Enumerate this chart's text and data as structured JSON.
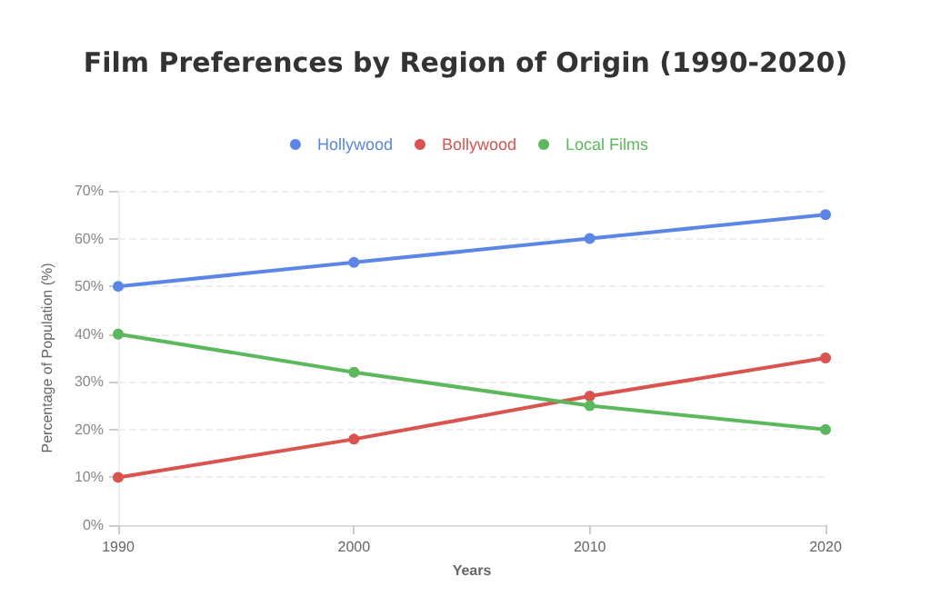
{
  "chart_data": {
    "type": "line",
    "title": "Film Preferences by Region of Origin (1990-2020)",
    "xlabel": "Years",
    "ylabel": "Percentage of Population (%)",
    "categories": [
      "1990",
      "2000",
      "2010",
      "2020"
    ],
    "series": [
      {
        "name": "Hollywood",
        "color": "#5b86e5",
        "values": [
          50,
          55,
          60,
          65
        ]
      },
      {
        "name": "Bollywood",
        "color": "#d9534f",
        "values": [
          10,
          18,
          27,
          35
        ]
      },
      {
        "name": "Local Films",
        "color": "#5cb85c",
        "values": [
          40,
          32,
          25,
          20
        ]
      }
    ],
    "ylim": [
      0,
      70
    ],
    "yticks": [
      {
        "value": 0,
        "label": "0%"
      },
      {
        "value": 10,
        "label": "10%"
      },
      {
        "value": 20,
        "label": "20%"
      },
      {
        "value": 30,
        "label": "30%"
      },
      {
        "value": 40,
        "label": "40%"
      },
      {
        "value": 50,
        "label": "50%"
      },
      {
        "value": 60,
        "label": "60%"
      },
      {
        "value": 70,
        "label": "70%"
      }
    ],
    "grid": "y",
    "legend": "top",
    "marker": "circle",
    "line_style": "solid"
  }
}
